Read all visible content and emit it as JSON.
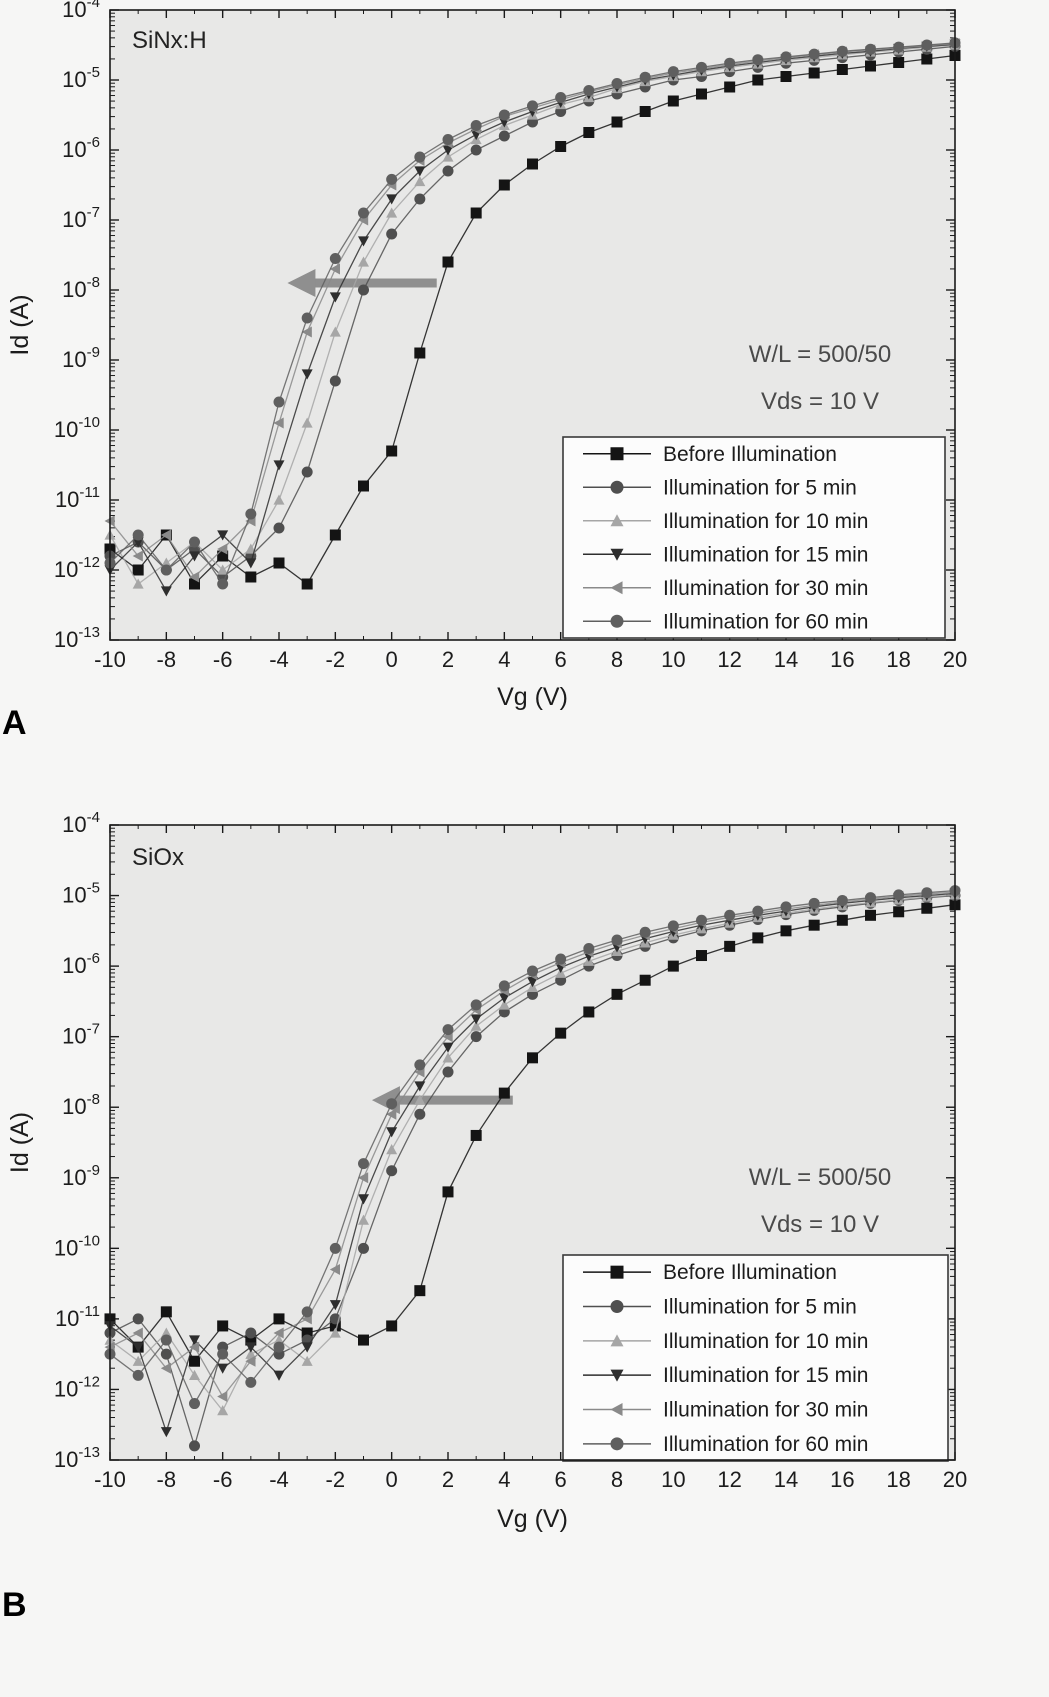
{
  "figure": {
    "panels": [
      {
        "letter": "A"
      },
      {
        "letter": "B"
      }
    ]
  },
  "chart_data": [
    {
      "id": "chartA",
      "type": "line",
      "title": "SiNx:H",
      "xlabel": "Vg (V)",
      "ylabel": "Id (A)",
      "xlim": [
        -10,
        20
      ],
      "x_ticks": [
        -10,
        -8,
        -6,
        -4,
        -2,
        0,
        2,
        4,
        6,
        8,
        10,
        12,
        14,
        16,
        18,
        20
      ],
      "ylog_range": [
        -4,
        -13
      ],
      "y_tick_exponents": [
        -4,
        -5,
        -6,
        -7,
        -8,
        -9,
        -10,
        -11,
        -12,
        -13
      ],
      "grid": false,
      "legend_position": "lower-right",
      "annotations": [
        "W/L = 500/50",
        "Vds = 10 V"
      ],
      "arrow": {
        "y_log": -7.9,
        "x_from": 1.6,
        "x_to": -3.7,
        "color": "#8f8f8f"
      },
      "x": [
        -10,
        -9,
        -8,
        -7,
        -6,
        -5,
        -4,
        -3,
        -2,
        -1,
        0,
        1,
        2,
        3,
        4,
        5,
        6,
        7,
        8,
        9,
        10,
        11,
        12,
        13,
        14,
        15,
        16,
        17,
        18,
        19,
        20
      ],
      "series": [
        {
          "name": "Before Illumination",
          "marker": "square",
          "color": "#141414",
          "log_id": [
            -11.7,
            -12.0,
            -11.5,
            -12.2,
            -11.8,
            -12.1,
            -11.9,
            -12.2,
            -11.5,
            -10.8,
            -10.3,
            -8.9,
            -7.6,
            -6.9,
            -6.5,
            -6.2,
            -5.95,
            -5.75,
            -5.6,
            -5.45,
            -5.3,
            -5.2,
            -5.1,
            -5.0,
            -4.95,
            -4.9,
            -4.85,
            -4.8,
            -4.75,
            -4.7,
            -4.65
          ]
        },
        {
          "name": "Illumination for 5 min",
          "marker": "circle",
          "color": "#4f4f4f",
          "log_id": [
            -11.8,
            -11.6,
            -12.0,
            -11.7,
            -12.1,
            -11.8,
            -11.4,
            -10.6,
            -9.3,
            -8.0,
            -7.2,
            -6.7,
            -6.3,
            -6.0,
            -5.8,
            -5.6,
            -5.45,
            -5.3,
            -5.2,
            -5.1,
            -5.0,
            -4.95,
            -4.88,
            -4.82,
            -4.76,
            -4.72,
            -4.68,
            -4.64,
            -4.6,
            -4.56,
            -4.52
          ]
        },
        {
          "name": "Illumination for 10 min",
          "marker": "triangle-up",
          "color": "#a6a6a6",
          "log_id": [
            -11.5,
            -12.2,
            -11.9,
            -11.6,
            -12.0,
            -11.7,
            -11.0,
            -9.9,
            -8.6,
            -7.6,
            -6.9,
            -6.45,
            -6.1,
            -5.85,
            -5.65,
            -5.5,
            -5.35,
            -5.25,
            -5.12,
            -5.02,
            -4.95,
            -4.88,
            -4.82,
            -4.77,
            -4.72,
            -4.68,
            -4.64,
            -4.6,
            -4.57,
            -4.53,
            -4.5
          ]
        },
        {
          "name": "Illumination for 15 min",
          "marker": "triangle-down",
          "color": "#2e2e2e",
          "log_id": [
            -12.0,
            -11.6,
            -12.3,
            -11.8,
            -11.5,
            -11.9,
            -10.5,
            -9.2,
            -8.1,
            -7.3,
            -6.7,
            -6.3,
            -6.0,
            -5.78,
            -5.6,
            -5.45,
            -5.32,
            -5.2,
            -5.1,
            -5.0,
            -4.93,
            -4.86,
            -4.8,
            -4.75,
            -4.7,
            -4.66,
            -4.62,
            -4.59,
            -4.55,
            -4.52,
            -4.49
          ]
        },
        {
          "name": "Illumination for 30 min",
          "marker": "triangle-left",
          "color": "#8a8a8a",
          "log_id": [
            -11.3,
            -11.8,
            -11.5,
            -12.1,
            -11.7,
            -11.3,
            -9.9,
            -8.6,
            -7.7,
            -7.0,
            -6.5,
            -6.15,
            -5.9,
            -5.7,
            -5.52,
            -5.4,
            -5.28,
            -5.17,
            -5.07,
            -4.98,
            -4.9,
            -4.84,
            -4.78,
            -4.73,
            -4.68,
            -4.64,
            -4.6,
            -4.57,
            -4.54,
            -4.51,
            -4.48
          ]
        },
        {
          "name": "Illumination for 60 min",
          "marker": "circle",
          "color": "#5f5f5f",
          "log_id": [
            -11.9,
            -11.5,
            -12.0,
            -11.6,
            -12.2,
            -11.2,
            -9.6,
            -8.4,
            -7.55,
            -6.9,
            -6.42,
            -6.1,
            -5.85,
            -5.65,
            -5.5,
            -5.37,
            -5.25,
            -5.15,
            -5.05,
            -4.96,
            -4.88,
            -4.82,
            -4.76,
            -4.71,
            -4.67,
            -4.63,
            -4.59,
            -4.56,
            -4.53,
            -4.5,
            -4.47
          ]
        }
      ]
    },
    {
      "id": "chartB",
      "type": "line",
      "title": "SiOx",
      "xlabel": "Vg (V)",
      "ylabel": "Id (A)",
      "xlim": [
        -10,
        20
      ],
      "x_ticks": [
        -10,
        -8,
        -6,
        -4,
        -2,
        0,
        2,
        4,
        6,
        8,
        10,
        12,
        14,
        16,
        18,
        20
      ],
      "ylog_range": [
        -4,
        -13
      ],
      "y_tick_exponents": [
        -4,
        -5,
        -6,
        -7,
        -8,
        -9,
        -10,
        -11,
        -12,
        -13
      ],
      "grid": false,
      "legend_position": "lower-right",
      "annotations": [
        "W/L = 500/50",
        "Vds = 10 V"
      ],
      "arrow": {
        "y_log": -7.9,
        "x_from": 4.3,
        "x_to": -0.7,
        "color": "#8f8f8f"
      },
      "x": [
        -10,
        -9,
        -8,
        -7,
        -6,
        -5,
        -4,
        -3,
        -2,
        -1,
        0,
        1,
        2,
        3,
        4,
        5,
        6,
        7,
        8,
        9,
        10,
        11,
        12,
        13,
        14,
        15,
        16,
        17,
        18,
        19,
        20
      ],
      "series": [
        {
          "name": "Before Illumination",
          "marker": "square",
          "color": "#141414",
          "log_id": [
            -11.0,
            -11.4,
            -10.9,
            -11.6,
            -11.1,
            -11.3,
            -11.0,
            -11.2,
            -11.1,
            -11.3,
            -11.1,
            -10.6,
            -9.2,
            -8.4,
            -7.8,
            -7.3,
            -6.95,
            -6.65,
            -6.4,
            -6.2,
            -6.0,
            -5.85,
            -5.72,
            -5.6,
            -5.5,
            -5.42,
            -5.35,
            -5.28,
            -5.23,
            -5.18,
            -5.13
          ]
        },
        {
          "name": "Illumination for 5 min",
          "marker": "circle",
          "color": "#4f4f4f",
          "log_id": [
            -11.2,
            -11.0,
            -11.5,
            -12.8,
            -11.4,
            -11.2,
            -11.5,
            -11.3,
            -11.0,
            -10.0,
            -8.9,
            -8.1,
            -7.5,
            -7.0,
            -6.65,
            -6.4,
            -6.2,
            -6.0,
            -5.85,
            -5.72,
            -5.6,
            -5.5,
            -5.42,
            -5.34,
            -5.27,
            -5.21,
            -5.16,
            -5.11,
            -5.07,
            -5.03,
            -5.0
          ]
        },
        {
          "name": "Illumination for 10 min",
          "marker": "triangle-up",
          "color": "#a6a6a6",
          "log_id": [
            -11.3,
            -11.6,
            -11.2,
            -11.8,
            -12.3,
            -11.5,
            -11.3,
            -11.6,
            -11.2,
            -9.6,
            -8.6,
            -7.9,
            -7.3,
            -6.85,
            -6.55,
            -6.3,
            -6.1,
            -5.93,
            -5.79,
            -5.67,
            -5.56,
            -5.47,
            -5.39,
            -5.31,
            -5.25,
            -5.19,
            -5.14,
            -5.1,
            -5.06,
            -5.02,
            -4.99
          ]
        },
        {
          "name": "Illumination for 15 min",
          "marker": "triangle-down",
          "color": "#2e2e2e",
          "log_id": [
            -11.1,
            -11.4,
            -12.6,
            -11.3,
            -11.7,
            -11.4,
            -11.8,
            -11.4,
            -10.8,
            -9.3,
            -8.35,
            -7.7,
            -7.15,
            -6.75,
            -6.45,
            -6.22,
            -6.02,
            -5.86,
            -5.73,
            -5.61,
            -5.51,
            -5.42,
            -5.35,
            -5.28,
            -5.22,
            -5.16,
            -5.11,
            -5.07,
            -5.03,
            -5.0,
            -4.97
          ]
        },
        {
          "name": "Illumination for 30 min",
          "marker": "triangle-left",
          "color": "#8a8a8a",
          "log_id": [
            -11.4,
            -11.2,
            -11.7,
            -11.4,
            -12.1,
            -11.6,
            -11.2,
            -11.0,
            -10.3,
            -9.0,
            -8.1,
            -7.5,
            -7.0,
            -6.62,
            -6.35,
            -6.12,
            -5.95,
            -5.8,
            -5.67,
            -5.56,
            -5.47,
            -5.38,
            -5.31,
            -5.25,
            -5.19,
            -5.14,
            -5.09,
            -5.05,
            -5.01,
            -4.98,
            -4.95
          ]
        },
        {
          "name": "Illumination for 60 min",
          "marker": "circle",
          "color": "#5f5f5f",
          "log_id": [
            -11.5,
            -11.8,
            -11.3,
            -12.2,
            -11.5,
            -11.9,
            -11.4,
            -10.9,
            -10.0,
            -8.8,
            -7.95,
            -7.4,
            -6.9,
            -6.55,
            -6.28,
            -6.07,
            -5.9,
            -5.75,
            -5.63,
            -5.52,
            -5.43,
            -5.35,
            -5.28,
            -5.22,
            -5.16,
            -5.11,
            -5.07,
            -5.03,
            -4.99,
            -4.96,
            -4.93
          ]
        }
      ]
    }
  ],
  "style": {
    "plot_bg": "#e8e8e7",
    "axis_color": "#1a1a1a",
    "text_color": "#1c1c1c",
    "annotation_color": "#4a4a4a",
    "legend_border": "#3a3a3a",
    "legend_bg": "#fcfcfc"
  }
}
